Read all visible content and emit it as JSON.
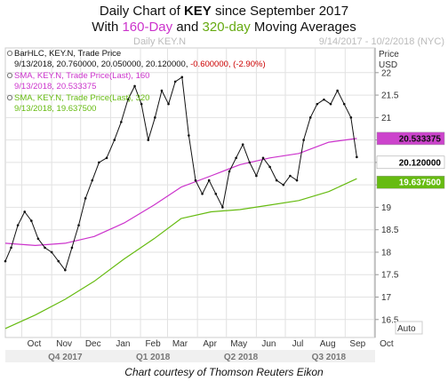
{
  "title": {
    "line1_prefix": "Daily Chart of ",
    "ticker": "KEY",
    "line1_suffix": " since September 2017",
    "line2_prefix": "With ",
    "ma1": "160-Day",
    "line2_middle": " and ",
    "ma2": "320-day",
    "line2_suffix": " Moving Averages"
  },
  "subtitle_left": "Daily KEY.N",
  "subtitle_right": "9/14/2017 - 10/2/2018 (NYC)",
  "price_header": [
    "Price",
    "USD"
  ],
  "auto_label": "Auto",
  "footer": "Chart courtesy of Thomson Reuters Eikon",
  "legend": [
    {
      "title": "BarHLC, KEY.N, Trade Price",
      "detail": "9/13/2018, 20.760000, 20.050000, 20.120000, ",
      "change": "-0.600000, (-2.90%)",
      "color": "#111111",
      "change_color": "#cc0000"
    },
    {
      "title": "SMA, KEY.N, Trade Price(Last), 160",
      "detail": "9/13/2018, 20.533375",
      "color": "#cc33cc"
    },
    {
      "title": "SMA, KEY.N, Trade Price(Last), 320",
      "detail": "9/13/2018, 19.637500",
      "color": "#66bb11"
    }
  ],
  "value_labels": [
    {
      "text": "20.533375",
      "value": 20.533375,
      "bg": "#cc44cc",
      "fg": "#111111"
    },
    {
      "text": "20.120000",
      "value": 20.12,
      "bg": "#ffffff",
      "fg": "#000000"
    },
    {
      "text": "19.637500",
      "value": 19.6375,
      "bg": "#66bb11",
      "fg": "#ffffff"
    }
  ],
  "colors": {
    "price": "#111111",
    "sma160": "#cc33cc",
    "sma320": "#66bb11",
    "grid": "#e2e2e2"
  },
  "chart_data": {
    "type": "line",
    "x_axis": {
      "months": [
        "Oct",
        "Nov",
        "Dec",
        "Jan",
        "Feb",
        "Mar",
        "Apr",
        "May",
        "Jun",
        "Jul",
        "Aug",
        "Sep",
        "Oct"
      ],
      "quarters": [
        "Q4 2017",
        "Q1 2018",
        "Q2 2018",
        "Q3 2018"
      ],
      "start": "2017-09-14",
      "end": "2018-10-02"
    },
    "y_axis": {
      "ticks": [
        16.5,
        17,
        17.5,
        18,
        18.5,
        19,
        19.5,
        20,
        20.5,
        21,
        21.5,
        22
      ],
      "ylim": [
        16.1,
        22.55
      ]
    },
    "grid": true,
    "series": [
      {
        "name": "KEY.N Trade Price (BarHLC)",
        "points": [
          [
            "2017-09-14",
            17.8
          ],
          [
            "2017-09-20",
            18.1
          ],
          [
            "2017-09-27",
            18.6
          ],
          [
            "2017-10-04",
            18.9
          ],
          [
            "2017-10-11",
            18.7
          ],
          [
            "2017-10-18",
            18.3
          ],
          [
            "2017-10-25",
            18.1
          ],
          [
            "2017-11-01",
            18.0
          ],
          [
            "2017-11-08",
            17.8
          ],
          [
            "2017-11-15",
            17.6
          ],
          [
            "2017-11-22",
            18.1
          ],
          [
            "2017-11-29",
            18.6
          ],
          [
            "2017-12-06",
            19.2
          ],
          [
            "2017-12-13",
            19.6
          ],
          [
            "2017-12-20",
            20.0
          ],
          [
            "2017-12-28",
            20.1
          ],
          [
            "2018-01-05",
            20.5
          ],
          [
            "2018-01-12",
            20.9
          ],
          [
            "2018-01-19",
            21.4
          ],
          [
            "2018-01-26",
            21.7
          ],
          [
            "2018-02-02",
            21.3
          ],
          [
            "2018-02-09",
            20.5
          ],
          [
            "2018-02-16",
            21.0
          ],
          [
            "2018-02-23",
            21.6
          ],
          [
            "2018-03-02",
            21.3
          ],
          [
            "2018-03-09",
            21.8
          ],
          [
            "2018-03-16",
            21.9
          ],
          [
            "2018-03-23",
            20.6
          ],
          [
            "2018-03-30",
            19.6
          ],
          [
            "2018-04-06",
            19.3
          ],
          [
            "2018-04-13",
            19.6
          ],
          [
            "2018-04-20",
            19.3
          ],
          [
            "2018-04-27",
            19.0
          ],
          [
            "2018-05-04",
            19.8
          ],
          [
            "2018-05-11",
            20.1
          ],
          [
            "2018-05-18",
            20.4
          ],
          [
            "2018-05-25",
            20.0
          ],
          [
            "2018-06-01",
            19.7
          ],
          [
            "2018-06-08",
            20.1
          ],
          [
            "2018-06-15",
            19.9
          ],
          [
            "2018-06-22",
            19.6
          ],
          [
            "2018-06-29",
            19.5
          ],
          [
            "2018-07-06",
            19.7
          ],
          [
            "2018-07-13",
            19.6
          ],
          [
            "2018-07-20",
            20.5
          ],
          [
            "2018-07-27",
            21.0
          ],
          [
            "2018-08-03",
            21.3
          ],
          [
            "2018-08-10",
            21.4
          ],
          [
            "2018-08-17",
            21.3
          ],
          [
            "2018-08-24",
            21.6
          ],
          [
            "2018-08-31",
            21.3
          ],
          [
            "2018-09-07",
            21.0
          ],
          [
            "2018-09-13",
            20.12
          ]
        ]
      },
      {
        "name": "SMA 160",
        "points": [
          [
            "2017-09-14",
            18.2
          ],
          [
            "2017-10-15",
            18.15
          ],
          [
            "2017-11-15",
            18.2
          ],
          [
            "2017-12-15",
            18.35
          ],
          [
            "2018-01-15",
            18.65
          ],
          [
            "2018-02-15",
            19.05
          ],
          [
            "2018-03-15",
            19.45
          ],
          [
            "2018-04-15",
            19.7
          ],
          [
            "2018-05-15",
            19.95
          ],
          [
            "2018-06-15",
            20.1
          ],
          [
            "2018-07-15",
            20.2
          ],
          [
            "2018-08-15",
            20.45
          ],
          [
            "2018-09-13",
            20.533375
          ]
        ]
      },
      {
        "name": "SMA 320",
        "points": [
          [
            "2017-09-14",
            16.3
          ],
          [
            "2017-10-15",
            16.6
          ],
          [
            "2017-11-15",
            16.95
          ],
          [
            "2017-12-15",
            17.35
          ],
          [
            "2018-01-15",
            17.85
          ],
          [
            "2018-02-15",
            18.3
          ],
          [
            "2018-03-15",
            18.75
          ],
          [
            "2018-04-15",
            18.9
          ],
          [
            "2018-05-15",
            18.95
          ],
          [
            "2018-06-15",
            19.05
          ],
          [
            "2018-07-15",
            19.15
          ],
          [
            "2018-08-15",
            19.35
          ],
          [
            "2018-09-13",
            19.6375
          ]
        ]
      }
    ]
  }
}
